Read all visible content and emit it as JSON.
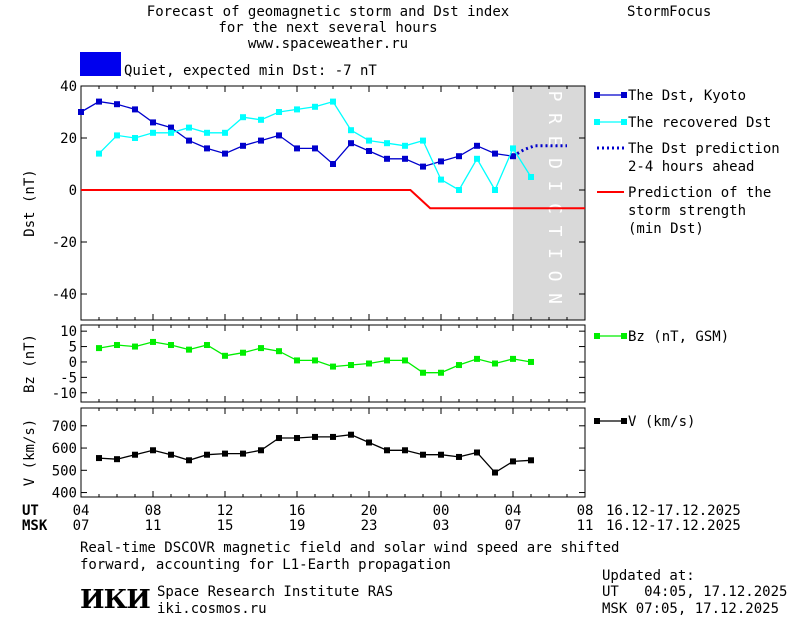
{
  "header": {
    "title_line1": "Forecast of geomagnetic storm and Dst index",
    "title_line2": "for the next several hours",
    "title_line3": "www.spaceweather.ru",
    "brand": "StormFocus",
    "status_text": "Quiet, expected min Dst: -7 nT",
    "status_color": "#0000ee"
  },
  "footer": {
    "note_line1": "Real-time DSCOVR magnetic field and solar wind speed are shifted",
    "note_line2": "forward, accounting for L1-Earth propagation",
    "institute": "Space Research Institute RAS",
    "website": "iki.cosmos.ru",
    "logo_text": "ИКИ",
    "updated_label": "Updated at:",
    "updated_ut": "UT   04:05, 17.12.2025",
    "updated_msk": "MSK 07:05, 17.12.2025"
  },
  "chart_data": {
    "type": "line",
    "prediction_label": "PREDICTION",
    "prediction_region": [
      24,
      28
    ],
    "time_axis": {
      "range": [
        0,
        28
      ],
      "ut_label": "UT",
      "msk_label": "MSK",
      "ut_ticks": [
        "04",
        "08",
        "12",
        "16",
        "20",
        "00",
        "04",
        "08"
      ],
      "msk_ticks": [
        "07",
        "11",
        "15",
        "19",
        "23",
        "03",
        "07",
        "11"
      ],
      "tick_positions": [
        0,
        4,
        8,
        12,
        16,
        20,
        24,
        28
      ],
      "ut_range_text": "16.12-17.12.2025",
      "msk_range_text": "16.12-17.12.2025"
    },
    "panels": [
      {
        "id": "dst",
        "ylabel": "Dst (nT)",
        "ylim": [
          -50,
          40
        ],
        "yticks": [
          40,
          20,
          0,
          -20,
          -40
        ],
        "series": [
          {
            "name": "The Dst, Kyoto",
            "color": "#0000cc",
            "marker": "square",
            "x": [
              0,
              1,
              2,
              3,
              4,
              5,
              6,
              7,
              8,
              9,
              10,
              11,
              12,
              13,
              14,
              15,
              16,
              17,
              18,
              19,
              20,
              21,
              22,
              23,
              24
            ],
            "y": [
              30,
              34,
              33,
              31,
              26,
              24,
              19,
              16,
              14,
              17,
              19,
              21,
              16,
              16,
              10,
              18,
              15,
              12,
              12,
              9,
              11,
              13,
              17,
              14,
              13
            ]
          },
          {
            "name": "The recovered Dst",
            "color": "#00ffff",
            "marker": "square",
            "x": [
              1,
              2,
              3,
              4,
              5,
              6,
              7,
              8,
              9,
              10,
              11,
              12,
              13,
              14,
              15,
              16,
              17,
              18,
              19,
              20,
              21,
              22,
              23,
              24,
              25
            ],
            "y": [
              14,
              21,
              20,
              22,
              22,
              24,
              22,
              22,
              28,
              27,
              30,
              31,
              32,
              34,
              23,
              19,
              18,
              17,
              19,
              4,
              0,
              12,
              0,
              16,
              5
            ]
          },
          {
            "name": "The Dst prediction\n2-4 hours ahead",
            "color": "#0000cc",
            "style": "dotted",
            "x": [
              24,
              24.6,
              25.2,
              26,
              27
            ],
            "y": [
              13,
              15.5,
              17,
              17,
              17
            ]
          },
          {
            "name": "Prediction of the\nstorm strength\n(min Dst)",
            "color": "#ff0000",
            "style": "step",
            "x": [
              0,
              18.3,
              19.4,
              28
            ],
            "y": [
              0,
              0,
              -7,
              -7
            ]
          }
        ]
      },
      {
        "id": "bz",
        "ylabel": "Bz (nT)",
        "ylim": [
          -13,
          12
        ],
        "yticks": [
          10,
          5,
          0,
          -5,
          -10
        ],
        "series": [
          {
            "name": "Bz (nT, GSM)",
            "color": "#00ee00",
            "marker": "square",
            "x": [
              1,
              2,
              3,
              4,
              5,
              6,
              7,
              8,
              9,
              10,
              11,
              12,
              13,
              14,
              15,
              16,
              17,
              18,
              19,
              20,
              21,
              22,
              23,
              24,
              25
            ],
            "y": [
              4.5,
              5.5,
              5,
              6.5,
              5.5,
              4,
              5.5,
              2,
              3,
              4.5,
              3.5,
              0.5,
              0.5,
              -1.5,
              -1,
              -0.5,
              0.5,
              0.5,
              -3.5,
              -3.5,
              -1,
              1,
              -0.5,
              1,
              0
            ]
          }
        ]
      },
      {
        "id": "v",
        "ylabel": "V (km/s)",
        "ylim": [
          380,
          780
        ],
        "yticks": [
          700,
          600,
          500,
          400
        ],
        "series": [
          {
            "name": "V (km/s)",
            "color": "#000000",
            "marker": "square",
            "x": [
              1,
              2,
              3,
              4,
              5,
              6,
              7,
              8,
              9,
              10,
              11,
              12,
              13,
              14,
              15,
              16,
              17,
              18,
              19,
              20,
              21,
              22,
              23,
              24,
              25
            ],
            "y": [
              555,
              550,
              570,
              590,
              570,
              545,
              570,
              575,
              575,
              590,
              645,
              645,
              650,
              650,
              660,
              625,
              590,
              590,
              570,
              570,
              560,
              580,
              490,
              540,
              545
            ]
          }
        ]
      }
    ]
  }
}
